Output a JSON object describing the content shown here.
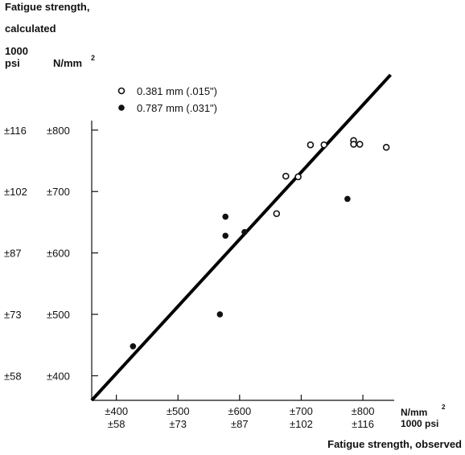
{
  "chart_data": {
    "type": "scatter",
    "title_lines": [
      "Fatigue strength,",
      "calculated"
    ],
    "y_unit_psi": [
      "1000",
      "psi"
    ],
    "y_unit_nmm": "N/mm",
    "y_unit_nmm_sup": "2",
    "x_unit_nmm": "N/mm",
    "x_unit_nmm_sup": "2",
    "x_unit_psi": "1000 psi",
    "xlabel": "Fatigue strength, observed",
    "xlim": [
      360,
      930
    ],
    "ylim": [
      360,
      900
    ],
    "x_ticks": [
      {
        "value": 400,
        "nmm": "±400",
        "psi": "±58"
      },
      {
        "value": 500,
        "nmm": "±500",
        "psi": "±73"
      },
      {
        "value": 600,
        "nmm": "±600",
        "psi": "±87"
      },
      {
        "value": 700,
        "nmm": "±700",
        "psi": "±102"
      },
      {
        "value": 800,
        "nmm": "±800",
        "psi": "±116"
      }
    ],
    "y_ticks": [
      {
        "value": 400,
        "nmm": "±400",
        "psi": "±58"
      },
      {
        "value": 500,
        "nmm": "±500",
        "psi": "±73"
      },
      {
        "value": 600,
        "nmm": "±600",
        "psi": "±87"
      },
      {
        "value": 700,
        "nmm": "±700",
        "psi": "±102"
      },
      {
        "value": 800,
        "nmm": "±800",
        "psi": "±116"
      }
    ],
    "fit_line": {
      "x": [
        360,
        845
      ],
      "y": [
        360,
        890
      ]
    },
    "series": [
      {
        "name": "0.381 mm (.015\")",
        "marker": "open",
        "points": [
          {
            "x": 675,
            "y": 725
          },
          {
            "x": 695,
            "y": 724
          },
          {
            "x": 715,
            "y": 776
          },
          {
            "x": 737,
            "y": 776
          },
          {
            "x": 660,
            "y": 664
          },
          {
            "x": 785,
            "y": 783
          },
          {
            "x": 785,
            "y": 777
          },
          {
            "x": 795,
            "y": 777
          },
          {
            "x": 838,
            "y": 772
          }
        ]
      },
      {
        "name": "0.787 mm (.031\")",
        "marker": "filled",
        "points": [
          {
            "x": 427,
            "y": 448
          },
          {
            "x": 568,
            "y": 500
          },
          {
            "x": 577,
            "y": 659
          },
          {
            "x": 577,
            "y": 628
          },
          {
            "x": 608,
            "y": 634
          },
          {
            "x": 775,
            "y": 688
          }
        ]
      }
    ]
  }
}
